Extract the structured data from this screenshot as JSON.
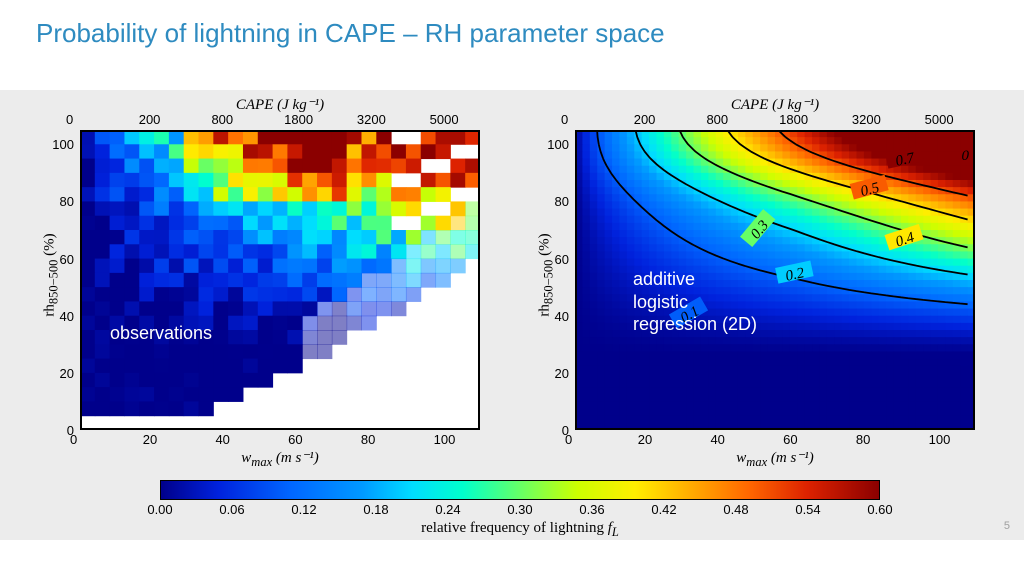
{
  "title": "Probability of lightning in CAPE – RH parameter space",
  "page_number": "5",
  "colorbar": {
    "label": "relative frequency of lightning 𝑓_L",
    "ticks": [
      0.0,
      0.06,
      0.12,
      0.18,
      0.24,
      0.3,
      0.36,
      0.42,
      0.48,
      0.54,
      0.6
    ],
    "gradient_stops": [
      [
        0.0,
        "#00008b"
      ],
      [
        0.08,
        "#0022dd"
      ],
      [
        0.18,
        "#0066ff"
      ],
      [
        0.28,
        "#0099ff"
      ],
      [
        0.35,
        "#00ddff"
      ],
      [
        0.42,
        "#00ffcc"
      ],
      [
        0.5,
        "#66ff66"
      ],
      [
        0.58,
        "#ccff00"
      ],
      [
        0.66,
        "#ffee00"
      ],
      [
        0.74,
        "#ffaa00"
      ],
      [
        0.82,
        "#ff6600"
      ],
      [
        0.9,
        "#dd2200"
      ],
      [
        1.0,
        "#8b0000"
      ]
    ]
  },
  "axes": {
    "x_bottom_label": "w_max (m s⁻¹)",
    "x_top_label": "CAPE (J kg⁻¹)",
    "y_label": "rh₈₅₀₋₅₀₀ (%)",
    "x_bottom_ticks": [
      0,
      20,
      40,
      60,
      80,
      100
    ],
    "x_top_ticks": [
      0,
      200,
      800,
      1800,
      3200,
      5000
    ],
    "y_ticks": [
      0,
      20,
      40,
      60,
      80,
      100
    ],
    "xlim": [
      0,
      110
    ],
    "ylim": [
      0,
      105
    ]
  },
  "left_plot": {
    "overlay": "observations",
    "type": "heatmap-blocky-observations"
  },
  "right_plot": {
    "overlay": "additive\nlogistic\nregression (2D)",
    "type": "heatmap-smooth-model",
    "contours": [
      {
        "level": 0.1,
        "label": "0.1"
      },
      {
        "level": 0.2,
        "label": "0.2"
      },
      {
        "level": 0.3,
        "label": "0.3"
      },
      {
        "level": 0.4,
        "label": "0.4"
      },
      {
        "level": 0.5,
        "label": "0.5"
      },
      {
        "level": 0.7,
        "label": "0.7"
      }
    ]
  },
  "grid_cols": 27,
  "grid_rows": 21
}
